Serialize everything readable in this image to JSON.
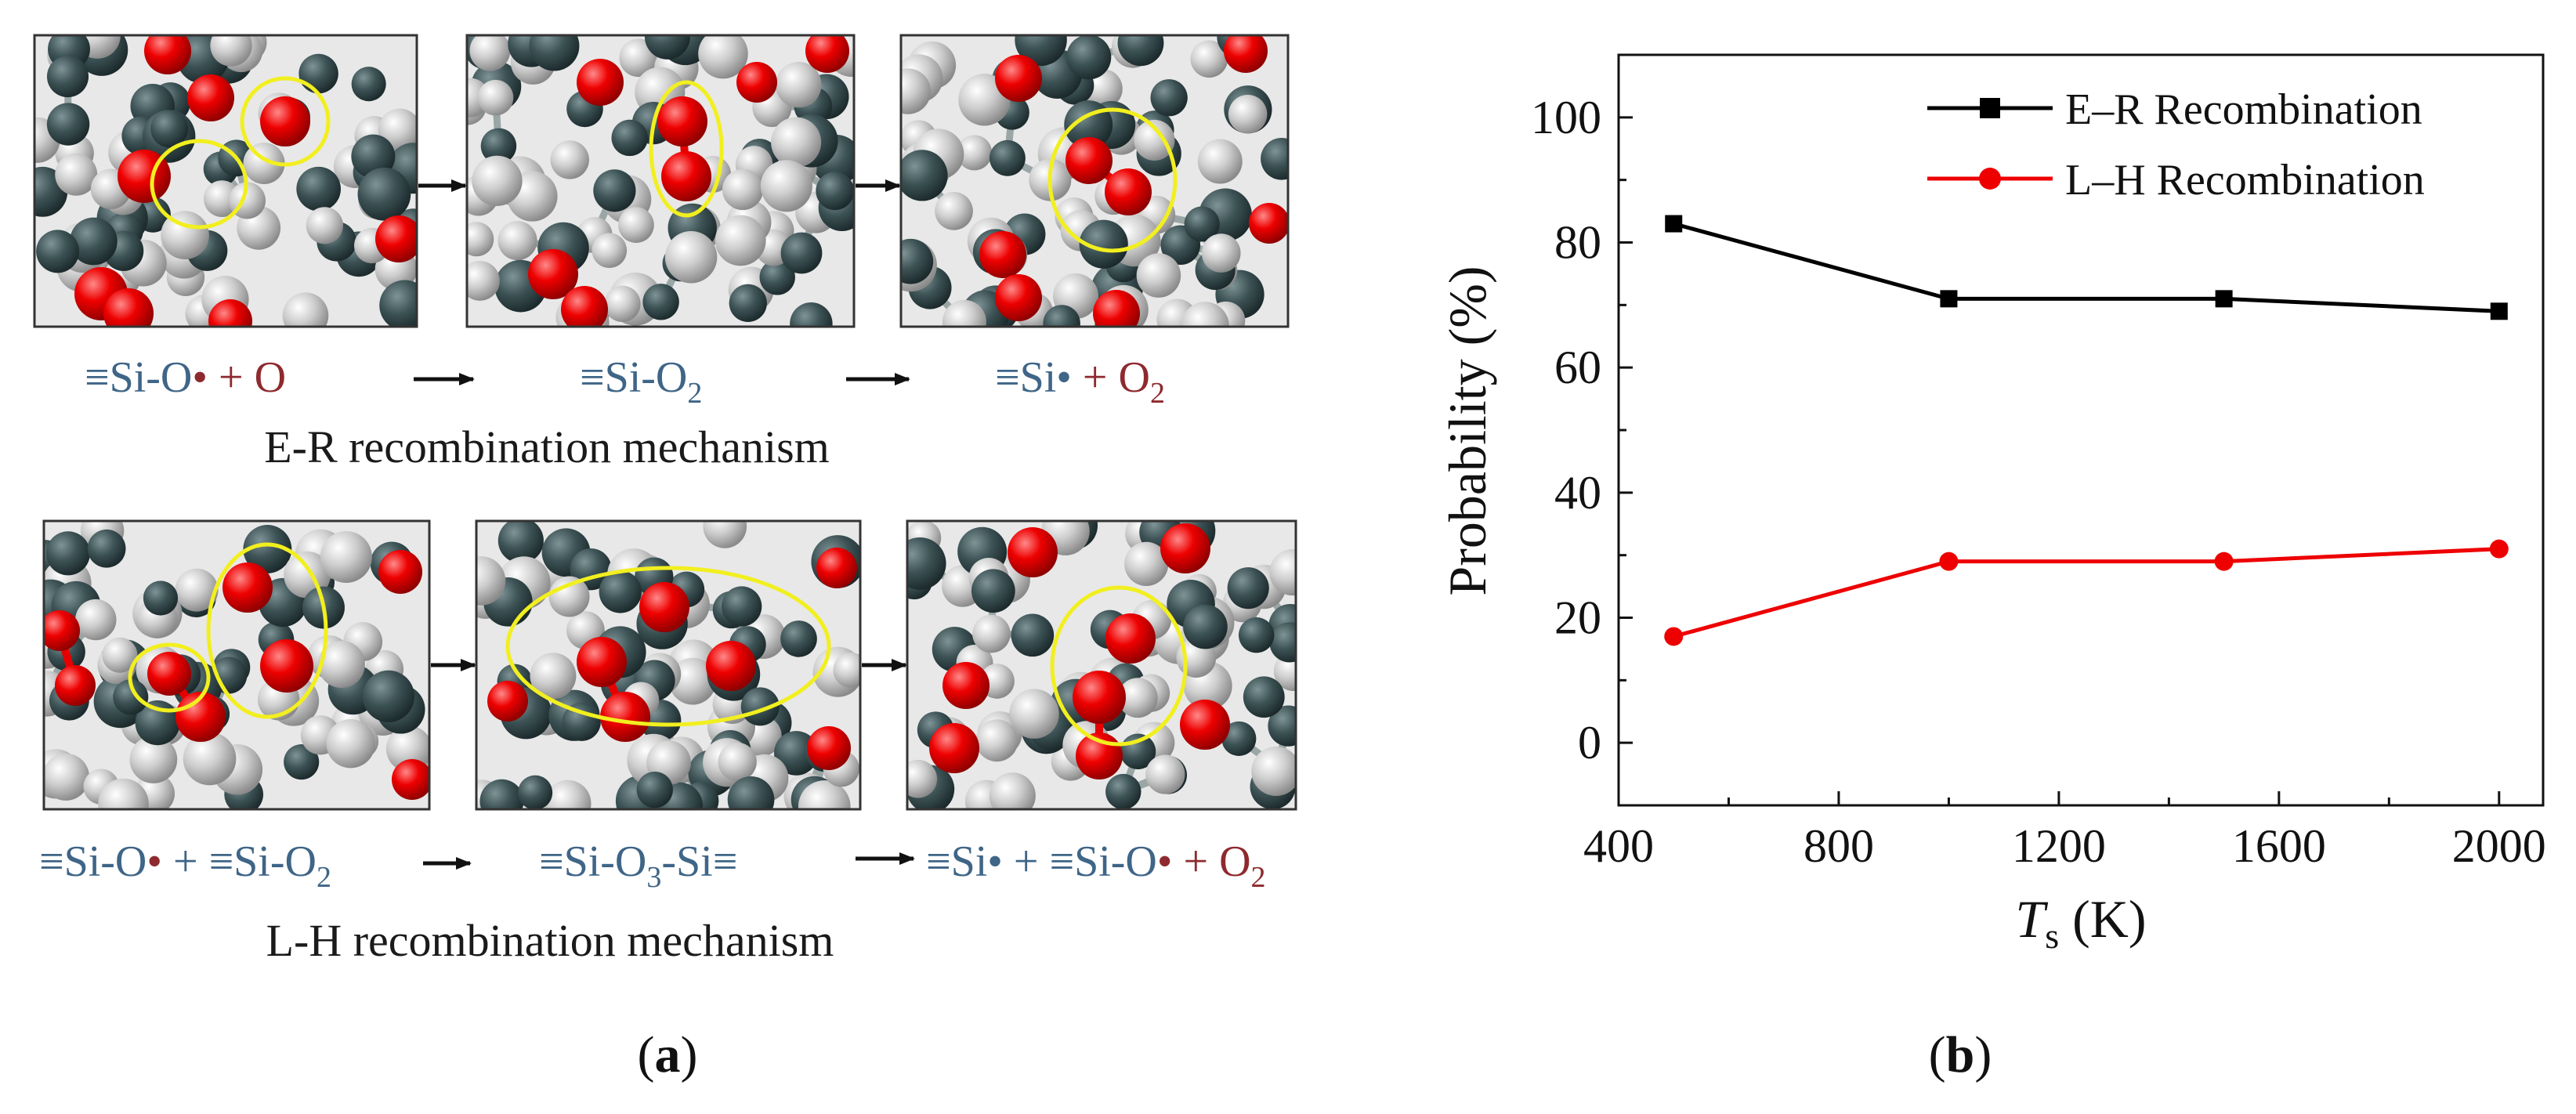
{
  "panel_a": {
    "label": "a",
    "er": {
      "reactant": {
        "prefix": "≡Si-O",
        "suffix": " + O"
      },
      "intermediate": {
        "prefix": "≡Si-O",
        "sub": "2"
      },
      "product": {
        "prefix": "≡Si",
        "suffix": " + O",
        "sub": "2"
      },
      "caption": "E-R recombination mechanism"
    },
    "lh": {
      "reactant": {
        "a": "≡Si-O",
        "b": " + ≡Si-O",
        "sub": "2"
      },
      "intermediate": {
        "a": "≡Si-O",
        "sub": "3",
        "b": "-Si≡"
      },
      "product": {
        "a": "≡Si",
        "b": " + ≡Si-O",
        "c": " + O",
        "sub": "2"
      },
      "caption": "L-H recombination mechanism"
    },
    "colors": {
      "si_text": "#3f6587",
      "o_text": "#8e2a2f",
      "silicon_atom": "#3d5356",
      "oxygen_atom": "#ee0000",
      "light_atom": "#c8c8c8",
      "highlight": "#f2ef1f"
    }
  },
  "panel_b": {
    "label": "b",
    "chart_data": {
      "type": "line",
      "x": [
        500,
        1000,
        1500,
        2000
      ],
      "series": [
        {
          "name": "E–R Recombination",
          "values": [
            83,
            71,
            71,
            69
          ],
          "color": "#000000",
          "marker": "square"
        },
        {
          "name": "L–H Recombination",
          "values": [
            17,
            29,
            29,
            31
          ],
          "color": "#ee0000",
          "marker": "circle"
        }
      ],
      "xlabel": {
        "italic": "T",
        "sub": "s",
        "rest": " (K)"
      },
      "ylabel": "Probability (%)",
      "xlim": [
        400,
        2080
      ],
      "ylim": [
        -10,
        110
      ],
      "xticks": [
        400,
        800,
        1200,
        1600,
        2000
      ],
      "yticks": [
        0,
        20,
        40,
        60,
        80,
        100
      ],
      "legend": "top-right",
      "grid": false
    }
  }
}
